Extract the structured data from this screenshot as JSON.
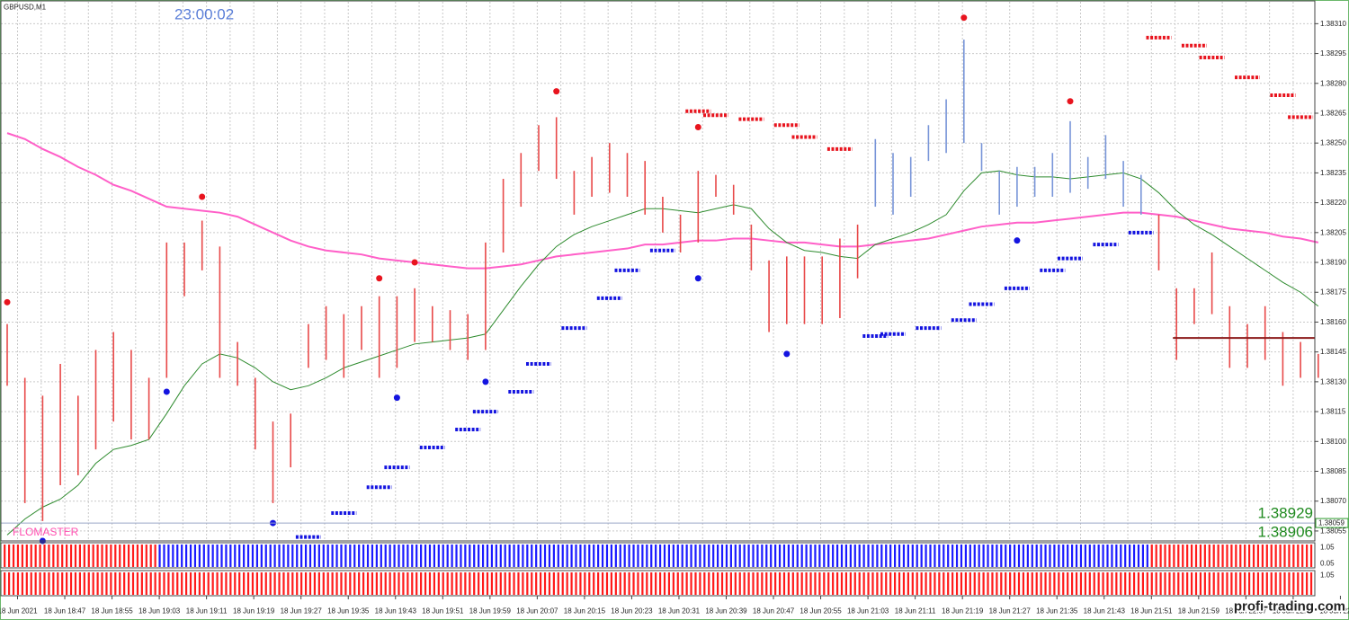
{
  "chart_data": {
    "type": "hilo",
    "title": "GBPUSD,M1",
    "clock": "23:00:02",
    "indicator_name": "FLOMASTER",
    "readouts": [
      "1.38929",
      "1.38906"
    ],
    "watermark": "profi-trading.com",
    "ylim": [
      1.3805,
      1.38321
    ],
    "yticks": [
      1.38055,
      {
        "value": 1.3807,
        "label": "1.38070"
      },
      1.38085,
      {
        "value": 1.381,
        "label": "1.38100"
      },
      1.38115,
      {
        "value": 1.3813,
        "label": "1.38130"
      },
      1.38145,
      {
        "value": 1.3816,
        "label": "1.38160"
      },
      1.38175,
      {
        "value": 1.3819,
        "label": "1.38190"
      },
      1.38205,
      {
        "value": 1.3822,
        "label": "1.38220"
      },
      1.38235,
      {
        "value": 1.3825,
        "label": "1.38250"
      },
      1.38265,
      {
        "value": 1.3828,
        "label": "1.38280"
      },
      1.38295,
      {
        "value": 1.3831,
        "label": "1.38310"
      }
    ],
    "grid": true,
    "current_price": 1.38059,
    "level_line": 1.38152,
    "x_labels": [
      "18 Jun 2021",
      "18 Jun 18:47",
      "18 Jun 18:55",
      "18 Jun 19:03",
      "18 Jun 19:11",
      "18 Jun 19:19",
      "18 Jun 19:27",
      "18 Jun 19:35",
      "18 Jun 19:43",
      "18 Jun 19:51",
      "18 Jun 19:59",
      "18 Jun 20:07",
      "18 Jun 20:15",
      "18 Jun 20:23",
      "18 Jun 20:31",
      "18 Jun 20:39",
      "18 Jun 20:47",
      "18 Jun 20:55",
      "18 Jun 21:03",
      "18 Jun 21:11",
      "18 Jun 21:19",
      "18 Jun 21:27",
      "18 Jun 21:35",
      "18 Jun 21:43",
      "18 Jun 21:51",
      "18 Jun 21:59",
      "18 Jun 22:07",
      "18 Jun 22:15",
      "18 Jun 22:23"
    ],
    "bars": {
      "high": [
        1.38159,
        1.38132,
        1.38123,
        1.38139,
        1.38123,
        1.38146,
        1.38155,
        1.38146,
        1.38132,
        1.382,
        1.382,
        1.38211,
        1.38198,
        1.3815,
        1.38132,
        1.3811,
        1.38114,
        1.38159,
        1.38168,
        1.38164,
        1.38168,
        1.38173,
        1.38173,
        1.38177,
        1.38168,
        1.38166,
        1.38164,
        1.382,
        1.38232,
        1.38245,
        1.38259,
        1.38263,
        1.38236,
        1.38243,
        1.3825,
        1.38245,
        1.38241,
        1.38223,
        1.38214,
        1.38236,
        1.38234,
        1.38229,
        1.38209,
        1.38191,
        1.38193,
        1.38193,
        1.38193,
        1.38202,
        1.38209,
        1.38252,
        1.38245,
        1.38243,
        1.38259,
        1.38272,
        1.38302,
        1.3825,
        1.38236,
        1.38238,
        1.38238,
        1.38245,
        1.38261,
        1.38243,
        1.38254,
        1.38241,
        1.38234,
        1.38214,
        1.38177,
        1.38177,
        1.38195,
        1.38168,
        1.38159,
        1.38168,
        1.38155,
        1.3815,
        1.38144
      ],
      "low": [
        1.38128,
        1.38069,
        1.3806,
        1.38078,
        1.38083,
        1.38096,
        1.3811,
        1.38101,
        1.38101,
        1.38132,
        1.38173,
        1.38186,
        1.38132,
        1.38128,
        1.38096,
        1.38069,
        1.38087,
        1.38137,
        1.38141,
        1.38132,
        1.38146,
        1.38132,
        1.38137,
        1.3815,
        1.3815,
        1.38146,
        1.38141,
        1.38146,
        1.38195,
        1.38218,
        1.38236,
        1.38232,
        1.38214,
        1.38223,
        1.38225,
        1.38223,
        1.38214,
        1.38205,
        1.38195,
        1.382,
        1.38223,
        1.38214,
        1.38186,
        1.38155,
        1.38159,
        1.38159,
        1.38159,
        1.38162,
        1.38182,
        1.38218,
        1.38214,
        1.38223,
        1.38241,
        1.38245,
        1.3825,
        1.38236,
        1.38214,
        1.38218,
        1.38223,
        1.38223,
        1.38225,
        1.38227,
        1.38232,
        1.38218,
        1.38214,
        1.38186,
        1.38141,
        1.38159,
        1.38164,
        1.38137,
        1.38137,
        1.38141,
        1.38128,
        1.38132,
        1.38132
      ],
      "colors": [
        "#e84848",
        "#e84848",
        "#e84848",
        "#e84848",
        "#e84848",
        "#e84848",
        "#e84848",
        "#e84848",
        "#e84848",
        "#e84848",
        "#e84848",
        "#e84848",
        "#e84848",
        "#e84848",
        "#e84848",
        "#e84848",
        "#e84848",
        "#e84848",
        "#e84848",
        "#e84848",
        "#e84848",
        "#e84848",
        "#e84848",
        "#e84848",
        "#e84848",
        "#e84848",
        "#e84848",
        "#e84848",
        "#e84848",
        "#e84848",
        "#e84848",
        "#e84848",
        "#e84848",
        "#e84848",
        "#e84848",
        "#e84848",
        "#e84848",
        "#e84848",
        "#e84848",
        "#e84848",
        "#e84848",
        "#e84848",
        "#e84848",
        "#e84848",
        "#e84848",
        "#e84848",
        "#e84848",
        "#e84848",
        "#e84848",
        "#7895d8",
        "#7895d8",
        "#7895d8",
        "#7895d8",
        "#7895d8",
        "#7895d8",
        "#7895d8",
        "#7895d8",
        "#7895d8",
        "#7895d8",
        "#7895d8",
        "#7895d8",
        "#7895d8",
        "#7895d8",
        "#7895d8",
        "#7895d8",
        "#e84848",
        "#e84848",
        "#e84848",
        "#e84848",
        "#e84848",
        "#e84848",
        "#e84848",
        "#e84848",
        "#e84848",
        "#e84848"
      ]
    },
    "ma_slow": {
      "color": "#ff5fc8",
      "values": [
        1.38255,
        1.38252,
        1.38247,
        1.38243,
        1.38238,
        1.38234,
        1.38229,
        1.38226,
        1.38222,
        1.38218,
        1.38217,
        1.38216,
        1.38215,
        1.38213,
        1.38209,
        1.38205,
        1.38201,
        1.38198,
        1.38196,
        1.38195,
        1.38194,
        1.38192,
        1.38191,
        1.3819,
        1.38189,
        1.38188,
        1.38187,
        1.38187,
        1.38188,
        1.38189,
        1.38191,
        1.38193,
        1.38194,
        1.38195,
        1.38196,
        1.38197,
        1.38199,
        1.38199,
        1.382,
        1.38201,
        1.38201,
        1.38202,
        1.38202,
        1.38201,
        1.382,
        1.382,
        1.38199,
        1.38198,
        1.38198,
        1.38199,
        1.382,
        1.38201,
        1.38202,
        1.38204,
        1.38206,
        1.38208,
        1.38209,
        1.3821,
        1.3821,
        1.38211,
        1.38212,
        1.38213,
        1.38214,
        1.38215,
        1.38215,
        1.38214,
        1.38213,
        1.38211,
        1.38209,
        1.38207,
        1.38206,
        1.38205,
        1.38203,
        1.38202,
        1.382
      ]
    },
    "ma_fast": {
      "color": "#2e8b2e",
      "values": [
        1.38053,
        1.38061,
        1.38067,
        1.38071,
        1.38078,
        1.38089,
        1.38096,
        1.38098,
        1.38101,
        1.38114,
        1.38128,
        1.38139,
        1.38144,
        1.38142,
        1.38137,
        1.3813,
        1.38126,
        1.38128,
        1.38132,
        1.38137,
        1.3814,
        1.38143,
        1.38146,
        1.38149,
        1.3815,
        1.38151,
        1.38152,
        1.38154,
        1.38166,
        1.38178,
        1.38189,
        1.38198,
        1.38204,
        1.38208,
        1.38211,
        1.38214,
        1.38217,
        1.38217,
        1.38216,
        1.38215,
        1.38217,
        1.38219,
        1.38217,
        1.38207,
        1.382,
        1.38196,
        1.38195,
        1.38193,
        1.38192,
        1.38199,
        1.38202,
        1.38205,
        1.38209,
        1.38214,
        1.38226,
        1.38235,
        1.38236,
        1.38234,
        1.38233,
        1.38233,
        1.38232,
        1.38233,
        1.38234,
        1.38235,
        1.38232,
        1.38225,
        1.38216,
        1.38209,
        1.38204,
        1.38198,
        1.38192,
        1.38186,
        1.3818,
        1.38175,
        1.38168
      ]
    },
    "resistance": {
      "color": "#e8141e",
      "values": [
        null,
        null,
        null,
        null,
        null,
        null,
        null,
        null,
        null,
        null,
        null,
        null,
        null,
        null,
        null,
        null,
        null,
        null,
        null,
        null,
        null,
        null,
        null,
        null,
        null,
        null,
        null,
        null,
        null,
        null,
        null,
        null,
        null,
        null,
        null,
        null,
        null,
        null,
        null,
        1.38266,
        1.38264,
        null,
        1.38262,
        null,
        1.38259,
        1.38253,
        null,
        1.38247,
        null,
        null,
        null,
        null,
        null,
        null,
        null,
        null,
        null,
        null,
        null,
        null,
        null,
        null,
        null,
        null,
        null,
        1.38303,
        null,
        1.38299,
        1.38293,
        null,
        1.38283,
        null,
        1.38274,
        1.38263,
        null
      ]
    },
    "support": {
      "color": "#1414e0",
      "values": [
        null,
        null,
        null,
        null,
        null,
        null,
        null,
        null,
        null,
        null,
        null,
        null,
        null,
        null,
        null,
        null,
        null,
        1.38052,
        null,
        1.38064,
        null,
        1.38077,
        1.38087,
        null,
        1.38097,
        null,
        1.38106,
        1.38115,
        null,
        1.38125,
        1.38139,
        null,
        1.38157,
        null,
        1.38172,
        1.38186,
        null,
        1.38196,
        null,
        null,
        null,
        null,
        null,
        null,
        null,
        null,
        null,
        null,
        null,
        1.38153,
        1.38154,
        null,
        1.38157,
        null,
        1.38161,
        1.38169,
        null,
        1.38177,
        null,
        1.38186,
        1.38192,
        null,
        1.38199,
        null,
        1.38205,
        null,
        null,
        null,
        null,
        null,
        null,
        null,
        null,
        null,
        null
      ]
    },
    "sell_dots": {
      "color": "#e8141e",
      "values": [
        1.3817,
        null,
        null,
        null,
        null,
        null,
        null,
        null,
        null,
        null,
        null,
        1.38223,
        null,
        null,
        null,
        null,
        null,
        null,
        null,
        null,
        null,
        1.38182,
        null,
        1.3819,
        null,
        null,
        null,
        null,
        null,
        null,
        null,
        1.38276,
        null,
        null,
        null,
        null,
        null,
        null,
        null,
        1.38258,
        null,
        null,
        null,
        null,
        null,
        null,
        null,
        null,
        null,
        null,
        null,
        null,
        null,
        null,
        1.38313,
        null,
        null,
        null,
        null,
        null,
        1.38271,
        null,
        null,
        null,
        null,
        null,
        null,
        null,
        null,
        null,
        null,
        null,
        null,
        null,
        null
      ]
    },
    "buy_dots": {
      "color": "#1414e0",
      "values": [
        null,
        null,
        1.3805,
        null,
        null,
        null,
        null,
        null,
        null,
        1.38125,
        null,
        null,
        null,
        null,
        null,
        1.38059,
        null,
        null,
        null,
        null,
        null,
        null,
        1.38122,
        null,
        null,
        null,
        null,
        1.3813,
        null,
        null,
        null,
        null,
        null,
        null,
        null,
        null,
        null,
        null,
        null,
        1.38182,
        null,
        null,
        null,
        null,
        1.38144,
        null,
        null,
        null,
        null,
        null,
        null,
        null,
        null,
        null,
        null,
        null,
        null,
        1.38201,
        null,
        null,
        null,
        null,
        null,
        null,
        null,
        null,
        null,
        null,
        null,
        null,
        null,
        null,
        null,
        null,
        null
      ]
    },
    "panes": [
      {
        "ticks": [
          "1.05",
          "0.05"
        ],
        "colors": [
          "#ff1a1a",
          "#ff1a1a",
          "#ff1a1a",
          "#ff1a1a",
          "#ff1a1a",
          "#ff1a1a",
          "#ff1a1a",
          "#ff1a1a",
          "#ff1a1a",
          "#1a1aff",
          "#1a1aff",
          "#1a1aff",
          "#1a1aff",
          "#1a1aff",
          "#1a1aff",
          "#1a1aff",
          "#1a1aff",
          "#1a1aff",
          "#1a1aff",
          "#1a1aff",
          "#1a1aff",
          "#1a1aff",
          "#1a1aff",
          "#1a1aff",
          "#1a1aff",
          "#1a1aff",
          "#1a1aff",
          "#1a1aff",
          "#1a1aff",
          "#1a1aff",
          "#1a1aff",
          "#1a1aff",
          "#1a1aff",
          "#1a1aff",
          "#1a1aff",
          "#1a1aff",
          "#1a1aff",
          "#1a1aff",
          "#1a1aff",
          "#1a1aff",
          "#1a1aff",
          "#1a1aff",
          "#1a1aff",
          "#1a1aff",
          "#1a1aff",
          "#1a1aff",
          "#1a1aff",
          "#1a1aff",
          "#1a1aff",
          "#1a1aff",
          "#1a1aff",
          "#1a1aff",
          "#1a1aff",
          "#1a1aff",
          "#1a1aff",
          "#1a1aff",
          "#1a1aff",
          "#1a1aff",
          "#1a1aff",
          "#1a1aff",
          "#1a1aff",
          "#1a1aff",
          "#1a1aff",
          "#1a1aff",
          "#1a1aff",
          "#ff1a1a",
          "#ff1a1a",
          "#ff1a1a",
          "#ff1a1a",
          "#ff1a1a",
          "#ff1a1a",
          "#ff1a1a",
          "#ff1a1a",
          "#ff1a1a",
          "#ff1a1a"
        ]
      },
      {
        "ticks": [
          "1.05"
        ],
        "colors": [
          "#ff1a1a",
          "#ff1a1a",
          "#ff1a1a",
          "#ff1a1a",
          "#ff1a1a",
          "#ff1a1a",
          "#ff1a1a",
          "#ff1a1a",
          "#ff1a1a",
          "#ff1a1a",
          "#ff1a1a",
          "#ff1a1a",
          "#ff1a1a",
          "#ff1a1a",
          "#ff1a1a",
          "#ff1a1a",
          "#ff1a1a",
          "#ff1a1a",
          "#ff1a1a",
          "#ff1a1a",
          "#ff1a1a",
          "#ff1a1a",
          "#ff1a1a",
          "#ff1a1a",
          "#ff1a1a",
          "#ff1a1a",
          "#ff1a1a",
          "#ff1a1a",
          "#ff1a1a",
          "#ff1a1a",
          "#ff1a1a",
          "#ff1a1a",
          "#ff1a1a",
          "#ff1a1a",
          "#ff1a1a",
          "#ff1a1a",
          "#ff1a1a",
          "#ff1a1a",
          "#ff1a1a",
          "#ff1a1a",
          "#ff1a1a",
          "#ff1a1a",
          "#ff1a1a",
          "#ff1a1a",
          "#ff1a1a",
          "#ff1a1a",
          "#ff1a1a",
          "#ff1a1a",
          "#ff1a1a",
          "#ff1a1a",
          "#ff1a1a",
          "#ff1a1a",
          "#ff1a1a",
          "#ff1a1a",
          "#ff1a1a",
          "#ff1a1a",
          "#ff1a1a",
          "#ff1a1a",
          "#ff1a1a",
          "#ff1a1a",
          "#ff1a1a",
          "#ff1a1a",
          "#ff1a1a",
          "#ff1a1a",
          "#ff1a1a",
          "#ff1a1a",
          "#ff1a1a",
          "#ff1a1a",
          "#ff1a1a",
          "#ff1a1a",
          "#ff1a1a",
          "#ff1a1a",
          "#ff1a1a",
          "#ff1a1a",
          "#ff1a1a"
        ]
      }
    ]
  }
}
